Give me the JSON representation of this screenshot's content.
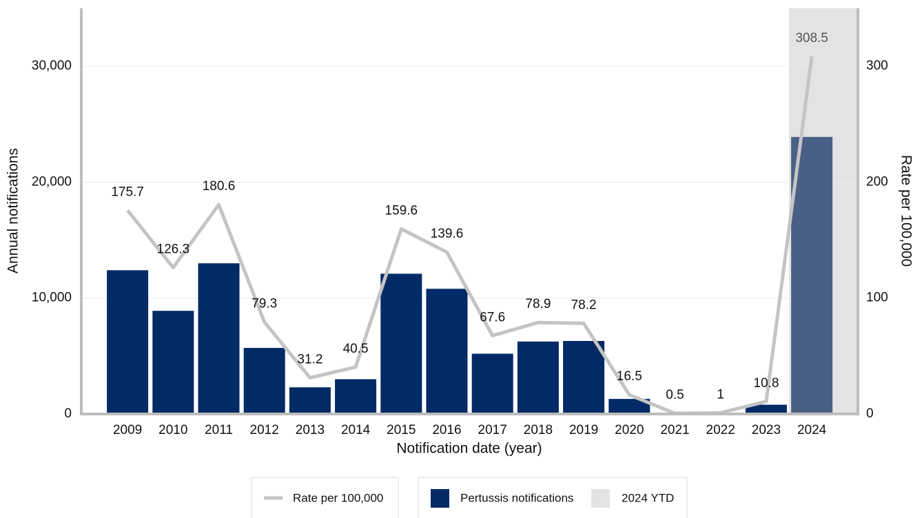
{
  "chart_data": {
    "type": "bar",
    "y_label": "Annual notifications",
    "y2_label": "Rate per 100,000",
    "x_label": "Notification date (year)",
    "categories": [
      "2009",
      "2010",
      "2011",
      "2012",
      "2013",
      "2014",
      "2015",
      "2016",
      "2017",
      "2018",
      "2019",
      "2020",
      "2021",
      "2022",
      "2023",
      "2024"
    ],
    "series": [
      {
        "name": "Pertussis notifications",
        "type": "bar",
        "color": "#022a66",
        "colors": [
          "#022a66",
          "#022a66",
          "#022a66",
          "#022a66",
          "#022a66",
          "#022a66",
          "#022a66",
          "#022a66",
          "#022a66",
          "#022a66",
          "#022a66",
          "#022a66",
          "#022a66",
          "#022a66",
          "#022a66",
          "#4a5f85"
        ],
        "values": [
          12400,
          8900,
          13000,
          5700,
          2300,
          3000,
          12100,
          10800,
          5200,
          6250,
          6300,
          1300,
          50,
          100,
          800,
          23900
        ]
      },
      {
        "name": "Rate per 100,000",
        "type": "line",
        "axis": "y2",
        "color": "#c4c4c4",
        "values": [
          175.7,
          126.3,
          180.6,
          79.3,
          31.2,
          40.5,
          159.6,
          139.6,
          67.6,
          78.9,
          78.2,
          16.5,
          0.5,
          1,
          10.8,
          308.5
        ]
      }
    ],
    "shaded": {
      "name": "2024 YTD",
      "color": "#e3e3e3",
      "category": "2024"
    },
    "ylim": [
      0,
      35000
    ],
    "yticks": [
      0,
      {
        "value": 10000,
        "label": "10,000"
      },
      {
        "value": 20000,
        "label": "20,000"
      },
      {
        "value": 30000,
        "label": "30,000"
      }
    ],
    "y2lim": [
      0,
      350
    ],
    "y2ticks": [
      0,
      100,
      200,
      300
    ],
    "grid": true
  }
}
